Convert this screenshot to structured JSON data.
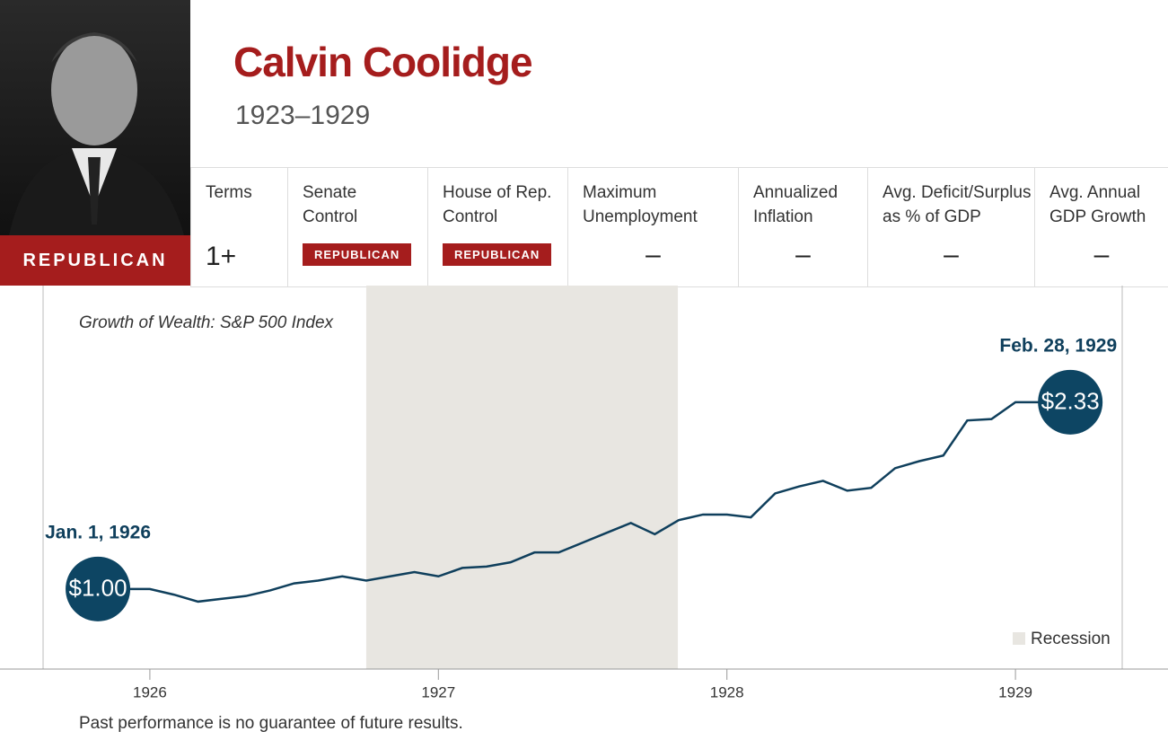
{
  "header": {
    "name": "Calvin Coolidge",
    "years": "1923–1929",
    "party": "REPUBLICAN"
  },
  "stats": [
    {
      "label": "Terms",
      "value": "1+"
    },
    {
      "label": "Senate\nControl",
      "badge": "REPUBLICAN"
    },
    {
      "label": "House of Rep.\nControl",
      "badge": "REPUBLICAN"
    },
    {
      "label": "Maximum\nUnemployment",
      "value": "–"
    },
    {
      "label": "Annualized\nInflation",
      "value": "–"
    },
    {
      "label": "Avg. Deficit/Surplus\nas % of GDP",
      "value": "–"
    },
    {
      "label": "Avg. Annual\nGDP Growth",
      "value": "–"
    }
  ],
  "footnote": "Past performance is no guarantee of future results.",
  "chart_data": {
    "type": "line",
    "title": "Growth of Wealth: S&P 500 Index",
    "x": [
      1925.82,
      1926.0,
      1926.083,
      1926.167,
      1926.25,
      1926.333,
      1926.417,
      1926.5,
      1926.583,
      1926.667,
      1926.75,
      1926.833,
      1926.917,
      1927.0,
      1927.083,
      1927.167,
      1927.25,
      1927.333,
      1927.417,
      1927.5,
      1927.583,
      1927.667,
      1927.75,
      1927.833,
      1927.917,
      1928.0,
      1928.083,
      1928.167,
      1928.25,
      1928.333,
      1928.417,
      1928.5,
      1928.583,
      1928.667,
      1928.75,
      1928.833,
      1928.917,
      1929.0,
      1929.083,
      1929.19
    ],
    "series": [
      {
        "color": "#0f3f5c",
        "values": [
          1.0,
          1.0,
          0.96,
          0.91,
          0.93,
          0.95,
          0.99,
          1.04,
          1.06,
          1.09,
          1.06,
          1.09,
          1.12,
          1.09,
          1.15,
          1.16,
          1.19,
          1.26,
          1.26,
          1.33,
          1.4,
          1.47,
          1.39,
          1.49,
          1.53,
          1.53,
          1.51,
          1.68,
          1.73,
          1.77,
          1.7,
          1.72,
          1.86,
          1.91,
          1.95,
          2.2,
          2.21,
          2.33,
          2.33,
          2.33
        ]
      }
    ],
    "xlim": [
      1925.63,
      1929.37
    ],
    "ylim": [
      0.43,
      3.16
    ],
    "xticks": [
      1926,
      1927,
      1928,
      1929
    ],
    "recession": {
      "label": "Recession",
      "range": [
        1926.75,
        1927.83
      ],
      "color": "#e8e6e1"
    },
    "annotations": [
      {
        "date": "Jan. 1, 1926",
        "value": 1.0,
        "label": "$1.00"
      },
      {
        "date": "Feb. 28, 1929",
        "value": 2.33,
        "label": "$2.33"
      }
    ],
    "marker_color": "#0d4563"
  }
}
